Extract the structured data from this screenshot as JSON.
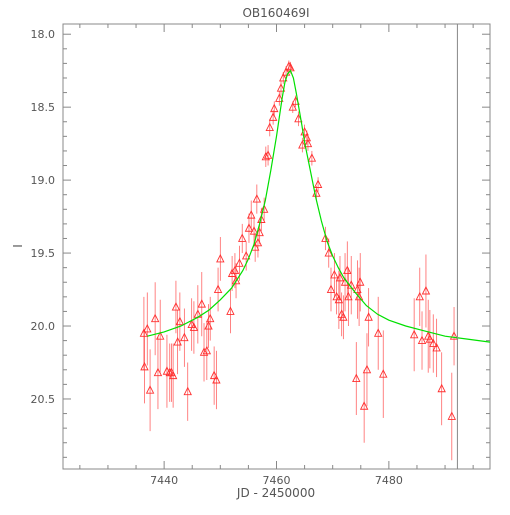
{
  "chart_data": {
    "type": "scatter",
    "title": "OB160469I",
    "xlabel": "JD - 2450000",
    "ylabel": "I",
    "xlim": [
      7422,
      7498
    ],
    "ylim": [
      20.98,
      17.93
    ],
    "y_inverted": true,
    "x_ticks": [
      7440,
      7460,
      7480
    ],
    "x_tick_labels": [
      "7440",
      "7460",
      "7480"
    ],
    "y_ticks": [
      18.0,
      18.5,
      19.0,
      19.5,
      20.0,
      20.5
    ],
    "y_tick_labels": [
      "18.0",
      "18.5",
      "19.0",
      "19.5",
      "20.0",
      "20.5"
    ],
    "vertical_line_x": 7492.2,
    "grid": false,
    "colors": {
      "points": "#ff3030",
      "model": "#00e000",
      "axes": "#888888"
    },
    "series": [
      {
        "kind": "observations",
        "marker": "triangle",
        "x": [
          7436.4,
          7436.5,
          7437.0,
          7437.5,
          7438.4,
          7438.9,
          7439.3,
          7440.5,
          7441.0,
          7441.3,
          7441.6,
          7442.1,
          7442.4,
          7442.8,
          7443.6,
          7444.2,
          7444.9,
          7445.3,
          7446.0,
          7446.7,
          7447.1,
          7447.6,
          7447.9,
          7448.2,
          7448.9,
          7449.3,
          7449.6,
          7450.0,
          7451.8,
          7452.1,
          7452.6,
          7452.8,
          7453.4,
          7453.9,
          7454.6,
          7455.1,
          7455.5,
          7456.0,
          7456.2,
          7456.5,
          7456.7,
          7457.0,
          7457.3,
          7457.8,
          7458.1,
          7458.5,
          7458.8,
          7459.4,
          7459.6,
          7460.5,
          7460.8,
          7461.2,
          7461.7,
          7462.2,
          7462.5,
          7462.9,
          7463.4,
          7463.9,
          7464.6,
          7465.0,
          7465.4,
          7465.6,
          7466.3,
          7467.1,
          7467.4,
          7468.7,
          7469.3,
          7469.7,
          7470.3,
          7470.7,
          7471.1,
          7471.3,
          7471.6,
          7471.9,
          7472.2,
          7472.6,
          7472.8,
          7473.3,
          7474.2,
          7474.4,
          7474.7,
          7474.9,
          7475.6,
          7476.1,
          7476.4,
          7478.1,
          7479.0,
          7484.5,
          7485.5,
          7485.9,
          7486.6,
          7487.0,
          7487.3,
          7487.9,
          7488.5,
          7489.4,
          7491.2,
          7491.6
        ],
        "y": [
          20.05,
          20.28,
          20.02,
          20.44,
          19.95,
          20.32,
          20.07,
          20.31,
          20.32,
          20.32,
          20.34,
          19.87,
          20.11,
          19.97,
          20.08,
          20.45,
          19.99,
          20.01,
          19.92,
          19.85,
          20.18,
          20.17,
          20.0,
          19.95,
          20.34,
          20.37,
          19.75,
          19.54,
          19.9,
          19.64,
          19.62,
          19.69,
          19.57,
          19.4,
          19.52,
          19.33,
          19.24,
          19.35,
          19.46,
          19.13,
          19.43,
          19.36,
          19.27,
          19.2,
          18.84,
          18.83,
          18.64,
          18.57,
          18.51,
          18.44,
          18.37,
          18.3,
          18.26,
          18.22,
          18.23,
          18.5,
          18.46,
          18.58,
          18.76,
          18.67,
          18.71,
          18.75,
          18.85,
          19.09,
          19.03,
          19.4,
          19.5,
          19.75,
          19.65,
          19.8,
          19.82,
          19.67,
          19.92,
          19.94,
          19.7,
          19.62,
          19.8,
          19.72,
          20.36,
          19.75,
          19.8,
          19.7,
          20.55,
          20.3,
          19.94,
          20.05,
          20.33,
          20.06,
          19.8,
          20.1,
          19.76,
          20.07,
          20.09,
          20.12,
          20.15,
          20.43,
          20.62,
          20.07
        ],
        "err": [
          0.25,
          0.25,
          0.25,
          0.28,
          0.25,
          0.25,
          0.25,
          0.25,
          0.2,
          0.2,
          0.22,
          0.18,
          0.22,
          0.2,
          0.2,
          0.2,
          0.18,
          0.18,
          0.2,
          0.22,
          0.2,
          0.2,
          0.15,
          0.15,
          0.2,
          0.2,
          0.15,
          0.15,
          0.15,
          0.12,
          0.12,
          0.12,
          0.12,
          0.1,
          0.1,
          0.1,
          0.1,
          0.1,
          0.1,
          0.1,
          0.1,
          0.08,
          0.08,
          0.08,
          0.07,
          0.07,
          0.06,
          0.05,
          0.05,
          0.05,
          0.05,
          0.04,
          0.04,
          0.04,
          0.04,
          0.04,
          0.04,
          0.05,
          0.05,
          0.05,
          0.05,
          0.05,
          0.05,
          0.05,
          0.05,
          0.08,
          0.1,
          0.15,
          0.15,
          0.12,
          0.2,
          0.15,
          0.15,
          0.15,
          0.2,
          0.2,
          0.2,
          0.2,
          0.25,
          0.2,
          0.2,
          0.2,
          0.25,
          0.25,
          0.2,
          0.25,
          0.3,
          0.25,
          0.2,
          0.2,
          0.25,
          0.25,
          0.2,
          0.2,
          0.2,
          0.25,
          0.3,
          0.2
        ]
      },
      {
        "kind": "model",
        "x": [
          7437,
          7440,
          7443,
          7446,
          7448,
          7450,
          7452,
          7454,
          7455,
          7456,
          7457,
          7458,
          7459,
          7460,
          7460.5,
          7461,
          7461.5,
          7462,
          7462.5,
          7463,
          7463.5,
          7464,
          7464.5,
          7465,
          7466,
          7467,
          7468,
          7469,
          7470,
          7471,
          7472,
          7474,
          7476,
          7478,
          7480,
          7483,
          7486,
          7490,
          7494,
          7498
        ],
        "y": [
          20.07,
          20.04,
          20.0,
          19.94,
          19.89,
          19.82,
          19.74,
          19.62,
          19.54,
          19.44,
          19.3,
          19.14,
          18.93,
          18.7,
          18.57,
          18.44,
          18.33,
          18.27,
          18.25,
          18.3,
          18.4,
          18.51,
          18.62,
          18.74,
          18.93,
          19.12,
          19.28,
          19.42,
          19.52,
          19.6,
          19.67,
          19.77,
          19.86,
          19.92,
          19.96,
          20.0,
          20.03,
          20.07,
          20.09,
          20.11
        ]
      }
    ]
  }
}
